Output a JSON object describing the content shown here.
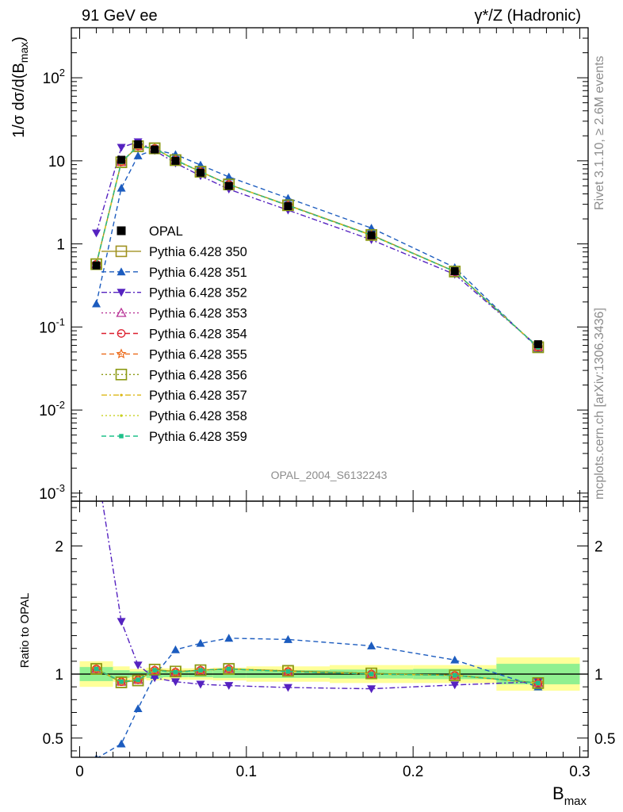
{
  "header": {
    "left": "91 GeV ee",
    "right": "γ*/Z (Hadronic)"
  },
  "side_text": {
    "rivet": "Rivet 3.1.10, ≥ 2.6M events",
    "mcplots": "mcplots.cern.ch [arXiv:1306.3436]"
  },
  "analysis_label": "OPAL_2004_S6132243",
  "colors": {
    "OPAL": "#000000",
    "350": "#a09220",
    "351": "#1c5cbf",
    "352": "#5522c0",
    "353": "#b83296",
    "354": "#dc1f2e",
    "355": "#ec6a1a",
    "356": "#8c9a14",
    "357": "#dcb818",
    "358": "#c8d020",
    "359": "#1fc08a",
    "band_inner": "#90f090",
    "band_outer": "#ffff99"
  },
  "chart_data": [
    {
      "type": "line",
      "panel": "main",
      "title": "91 GeV ee",
      "ylabel": "1/σ dσ/d(B_max)",
      "yscale": "log",
      "ylim": [
        0.0008,
        400
      ],
      "xlim": [
        -0.005,
        0.305
      ],
      "y_ticks": [
        "10^-3",
        "10^-2",
        "10^-1",
        "1",
        "10",
        "10^2"
      ],
      "legend_position": "middle-left",
      "x": [
        0.01,
        0.025,
        0.035,
        0.045,
        0.0575,
        0.0725,
        0.0895,
        0.125,
        0.175,
        0.225,
        0.275
      ],
      "series": [
        {
          "name": "OPAL",
          "marker": "filled-square",
          "values": [
            0.55,
            10.3,
            15.8,
            13.7,
            10.0,
            7.2,
            5.0,
            2.85,
            1.27,
            0.47,
            0.062
          ]
        },
        {
          "name": "Pythia 6.428 350",
          "marker": "open-square",
          "style": "solid",
          "values": [
            0.57,
            9.6,
            15.0,
            14.2,
            10.2,
            7.4,
            5.2,
            2.92,
            1.28,
            0.465,
            0.057
          ]
        },
        {
          "name": "Pythia 6.428 351",
          "marker": "filled-triangle-up",
          "style": "dashed",
          "values": [
            0.19,
            4.7,
            11.5,
            13.6,
            11.9,
            8.9,
            6.4,
            3.55,
            1.55,
            0.52,
            0.055
          ]
        },
        {
          "name": "Pythia 6.428 352",
          "marker": "filled-triangle-down",
          "style": "dashdot",
          "values": [
            1.35,
            14.5,
            16.9,
            13.3,
            9.4,
            6.6,
            4.55,
            2.55,
            1.12,
            0.43,
            0.058
          ]
        },
        {
          "name": "Pythia 6.428 353",
          "marker": "open-triangle-up",
          "style": "dotted",
          "values": [
            0.57,
            9.7,
            15.1,
            14.1,
            10.1,
            7.4,
            5.2,
            2.9,
            1.27,
            0.465,
            0.057
          ]
        },
        {
          "name": "Pythia 6.428 354",
          "marker": "open-circle",
          "style": "dashed",
          "values": [
            0.57,
            9.7,
            15.0,
            14.1,
            10.2,
            7.4,
            5.2,
            2.9,
            1.27,
            0.465,
            0.057
          ]
        },
        {
          "name": "Pythia 6.428 355",
          "marker": "open-star",
          "style": "dashed",
          "values": [
            0.57,
            9.7,
            15.0,
            14.1,
            10.2,
            7.4,
            5.2,
            2.9,
            1.27,
            0.465,
            0.057
          ]
        },
        {
          "name": "Pythia 6.428 356",
          "marker": "open-square",
          "style": "dotted",
          "values": [
            0.57,
            9.6,
            15.0,
            14.1,
            10.2,
            7.4,
            5.2,
            2.92,
            1.28,
            0.465,
            0.057
          ]
        },
        {
          "name": "Pythia 6.428 357",
          "marker": "small-dot",
          "style": "dashdot",
          "values": [
            0.57,
            9.7,
            15.0,
            14.1,
            10.2,
            7.4,
            5.2,
            2.9,
            1.27,
            0.465,
            0.057
          ]
        },
        {
          "name": "Pythia 6.428 358",
          "marker": "small-dot",
          "style": "dotted",
          "values": [
            0.57,
            9.7,
            15.0,
            14.1,
            10.2,
            7.4,
            5.2,
            2.9,
            1.27,
            0.465,
            0.057
          ]
        },
        {
          "name": "Pythia 6.428 359",
          "marker": "filled-small-square",
          "style": "dashed",
          "values": [
            0.57,
            9.7,
            15.0,
            14.1,
            10.2,
            7.4,
            5.2,
            2.9,
            1.27,
            0.465,
            0.057
          ]
        }
      ]
    },
    {
      "type": "line",
      "panel": "ratio",
      "xlabel": "B_max",
      "ylabel": "Ratio to OPAL",
      "ylim": [
        0.35,
        2.35
      ],
      "x_ticks": [
        0,
        0.1,
        0.2,
        0.3
      ],
      "x_tick_labels": [
        "0",
        "0.1",
        "0.2",
        "0.3"
      ],
      "y_ticks": [
        0.5,
        1,
        2
      ],
      "y_tick_labels": [
        "0.5",
        "1",
        "2"
      ],
      "bins": [
        [
          0,
          0.02
        ],
        [
          0.02,
          0.03
        ],
        [
          0.03,
          0.04
        ],
        [
          0.04,
          0.05
        ],
        [
          0.05,
          0.065
        ],
        [
          0.065,
          0.08
        ],
        [
          0.08,
          0.1
        ],
        [
          0.1,
          0.15
        ],
        [
          0.15,
          0.2
        ],
        [
          0.2,
          0.25
        ],
        [
          0.25,
          0.3
        ]
      ],
      "band_inner": [
        0.055,
        0.03,
        0.02,
        0.03,
        0.025,
        0.025,
        0.03,
        0.03,
        0.035,
        0.04,
        0.08
      ],
      "band_outer": [
        0.1,
        0.06,
        0.04,
        0.05,
        0.045,
        0.045,
        0.05,
        0.06,
        0.07,
        0.07,
        0.13
      ],
      "x": [
        0.01,
        0.025,
        0.035,
        0.045,
        0.0575,
        0.0725,
        0.0895,
        0.125,
        0.175,
        0.225,
        0.275
      ],
      "series": [
        {
          "name": "Pythia 6.428 350",
          "values": [
            1.04,
            0.935,
            0.95,
            1.035,
            1.02,
            1.03,
            1.04,
            1.025,
            1.005,
            0.99,
            0.93
          ]
        },
        {
          "name": "Pythia 6.428 351",
          "values": [
            0.34,
            0.455,
            0.73,
            0.99,
            1.19,
            1.24,
            1.28,
            1.27,
            1.22,
            1.11,
            0.9
          ]
        },
        {
          "name": "Pythia 6.428 352",
          "values": [
            2.65,
            1.41,
            1.07,
            0.97,
            0.94,
            0.92,
            0.91,
            0.895,
            0.885,
            0.915,
            0.94
          ]
        },
        {
          "name": "Pythia 6.428 353",
          "values": [
            1.04,
            0.94,
            0.955,
            1.03,
            1.015,
            1.03,
            1.04,
            1.02,
            1.0,
            0.99,
            0.93
          ]
        },
        {
          "name": "Pythia 6.428 354",
          "values": [
            1.04,
            0.94,
            0.955,
            1.03,
            1.015,
            1.03,
            1.04,
            1.02,
            1.0,
            0.99,
            0.93
          ]
        },
        {
          "name": "Pythia 6.428 355",
          "values": [
            1.04,
            0.94,
            0.955,
            1.03,
            1.015,
            1.03,
            1.04,
            1.02,
            1.0,
            0.99,
            0.93
          ]
        },
        {
          "name": "Pythia 6.428 356",
          "values": [
            1.04,
            0.935,
            0.95,
            1.035,
            1.02,
            1.03,
            1.04,
            1.025,
            1.005,
            0.99,
            0.93
          ]
        },
        {
          "name": "Pythia 6.428 357",
          "values": [
            1.04,
            0.94,
            0.955,
            1.03,
            1.015,
            1.03,
            1.04,
            1.02,
            1.0,
            0.99,
            0.93
          ]
        },
        {
          "name": "Pythia 6.428 358",
          "values": [
            1.04,
            0.94,
            0.955,
            1.03,
            1.015,
            1.03,
            1.04,
            1.02,
            1.0,
            0.99,
            0.93
          ]
        },
        {
          "name": "Pythia 6.428 359",
          "values": [
            1.04,
            0.94,
            0.955,
            1.03,
            1.015,
            1.03,
            1.04,
            1.02,
            1.0,
            0.99,
            0.93
          ]
        }
      ]
    }
  ]
}
